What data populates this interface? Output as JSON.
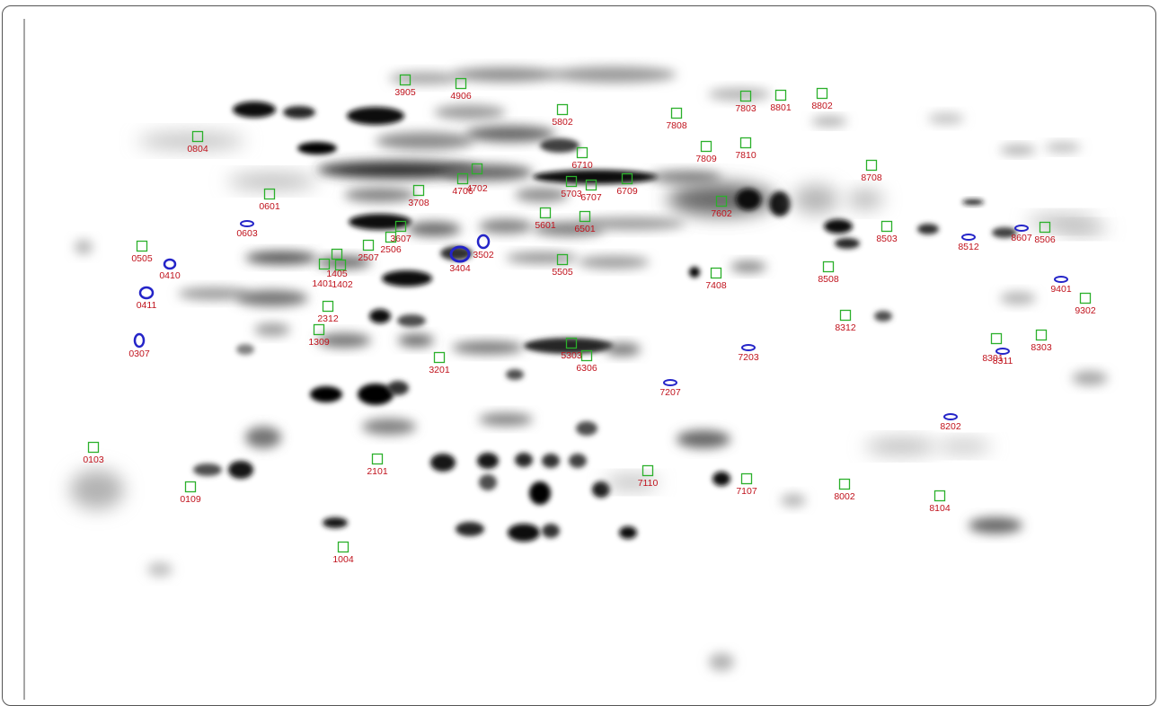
{
  "figure": {
    "type": "2D gel electrophoresis spot map",
    "background": "#ffffff",
    "box_color": "#2bb02b",
    "marker_color": "#2424c8",
    "label_color": "#c0121c",
    "boxed_spots": [
      "3905",
      "4906",
      "5802",
      "7808",
      "7803",
      "8801",
      "8802",
      "0804",
      "6710",
      "7809",
      "7810",
      "8708",
      "4702",
      "4706",
      "5703",
      "6707",
      "6709",
      "3708",
      "0601",
      "7602",
      "5601",
      "6501",
      "3607",
      "2506",
      "2507",
      "8503",
      "8506",
      "0505",
      "1405",
      "1401",
      "1402",
      "5505",
      "8508",
      "7408",
      "9302",
      "2312",
      "8312",
      "1309",
      "5303",
      "6306",
      "8303",
      "8301",
      "3201",
      "0103",
      "2101",
      "7110",
      "0109",
      "7107",
      "8002",
      "8104",
      "1004"
    ],
    "marked_spots": [
      "0603",
      "3502",
      "3404",
      "8512",
      "8607",
      "0410",
      "9401",
      "0411",
      "0307",
      "7203",
      "8311",
      "7207",
      "8202"
    ]
  }
}
